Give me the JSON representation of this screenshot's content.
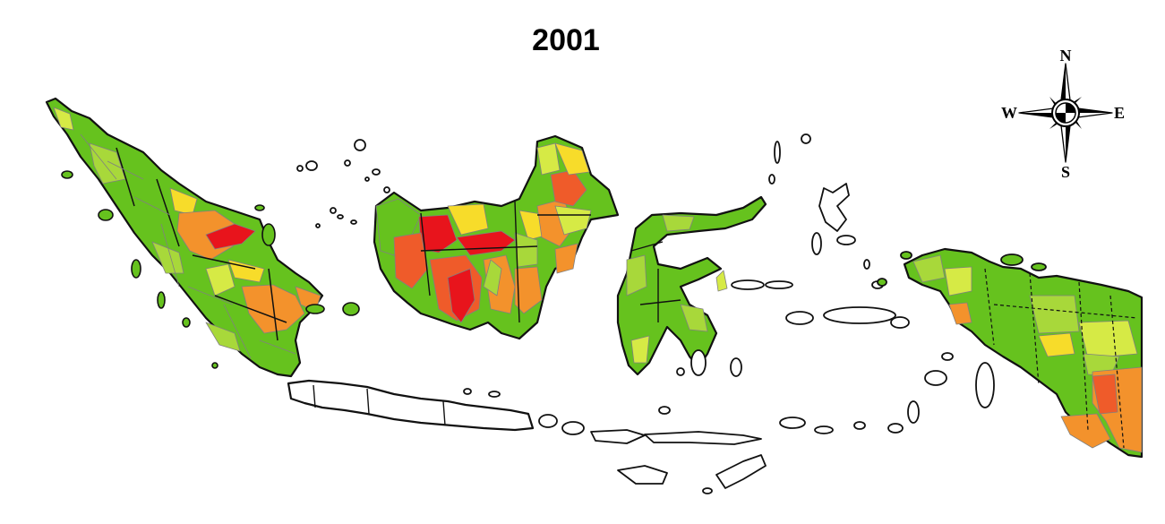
{
  "title": "2001",
  "compass": {
    "north": "N",
    "south": "S",
    "east": "E",
    "west": "W"
  },
  "palette": {
    "green": "#66c21e",
    "light_green": "#a8d83a",
    "yellow_green": "#d6ea45",
    "yellow": "#f7dc2a",
    "orange": "#f3922c",
    "red_orange": "#ef5b2a",
    "red": "#e8141c",
    "outline": "#111111",
    "province_border": "#808080",
    "no_data": "#ffffff"
  },
  "icons": {
    "compass": "compass-rose-icon"
  }
}
